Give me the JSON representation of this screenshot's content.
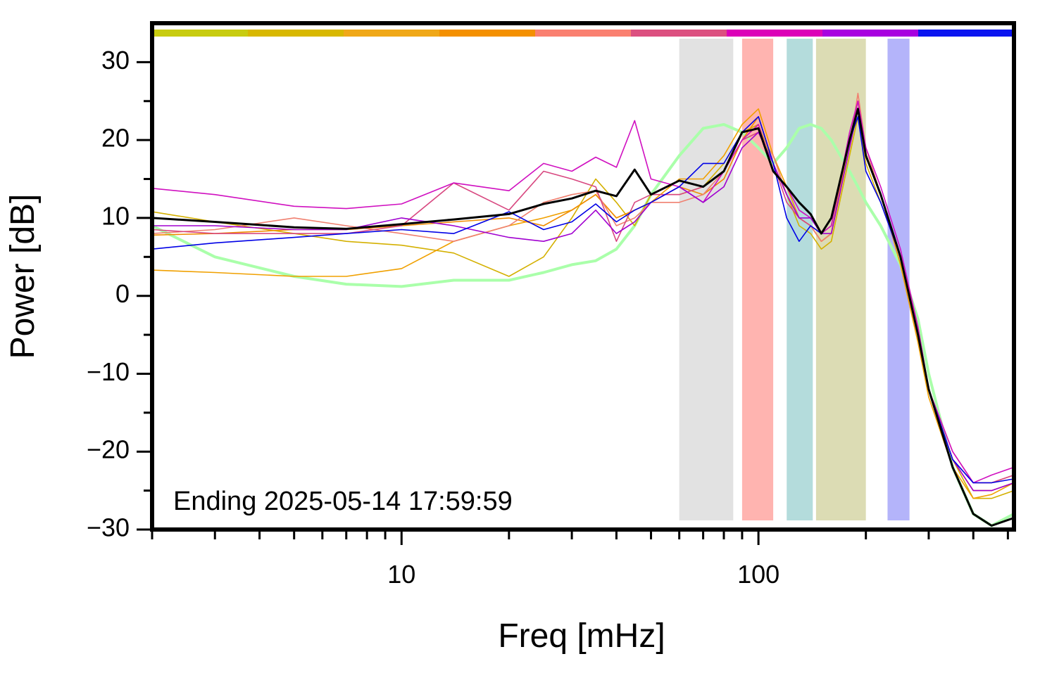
{
  "chart_data": {
    "type": "line",
    "xlabel": "Freq [mHz]",
    "ylabel": "Power [dB]",
    "annotation": "Ending 2025-05-14 17:59:59",
    "log_x": true,
    "xlim": [
      2,
      520
    ],
    "ylim": [
      -30,
      35
    ],
    "xticks": [
      10,
      100
    ],
    "xminor": [
      2,
      3,
      4,
      5,
      6,
      7,
      8,
      9,
      20,
      30,
      40,
      50,
      60,
      70,
      80,
      90,
      200,
      300,
      400,
      500
    ],
    "yticks": [
      {
        "value": -30,
        "label": "−30"
      },
      {
        "value": -20,
        "label": "−20"
      },
      {
        "value": -10,
        "label": "−10"
      },
      0,
      10,
      20,
      30
    ],
    "yminor": [
      -25,
      -15,
      -5,
      5,
      15,
      25
    ],
    "colorbar": [
      "#c8cc10",
      "#d8b800",
      "#f0a818",
      "#f49000",
      "#fa8070",
      "#dc5080",
      "#dc00b8",
      "#a800e0",
      "#0a14f0"
    ],
    "bands": [
      {
        "range": [
          60,
          85
        ],
        "color": "#e2e2e2"
      },
      {
        "range": [
          90,
          110
        ],
        "color": "#ffb4b0"
      },
      {
        "range": [
          120,
          142
        ],
        "color": "#b4dcdc"
      },
      {
        "range": [
          145,
          200
        ],
        "color": "#dcdcb4"
      },
      {
        "range": [
          230,
          265
        ],
        "color": "#b4b4fa"
      }
    ],
    "x": [
      2,
      3,
      5,
      7,
      10,
      14,
      20,
      25,
      30,
      35,
      40,
      45,
      50,
      60,
      70,
      80,
      90,
      100,
      110,
      120,
      130,
      140,
      150,
      160,
      180,
      190,
      200,
      220,
      250,
      280,
      300,
      350,
      400,
      450,
      520
    ],
    "series": [
      {
        "color": "#aaffaa",
        "width": 4,
        "values": [
          9,
          5,
          2.5,
          1.5,
          1.2,
          2,
          2,
          3,
          4,
          4.5,
          6,
          9,
          13,
          18,
          21.5,
          22,
          21,
          19,
          17,
          19,
          21.5,
          22,
          21.5,
          20,
          16,
          14,
          12,
          9,
          4,
          -3,
          -10,
          -22,
          -28,
          -29.5,
          -28
        ]
      },
      {
        "color": "#d4b000",
        "width": 1.6,
        "values": [
          10.8,
          9.5,
          8,
          7,
          6.5,
          5.5,
          2.5,
          5,
          10,
          15,
          12,
          9,
          13,
          13,
          14,
          17,
          21,
          22,
          17,
          13,
          9,
          8,
          6,
          7,
          18,
          23,
          17,
          12,
          5,
          -5,
          -12,
          -21,
          -26,
          -26,
          -25
        ]
      },
      {
        "color": "#f0a000",
        "width": 1.6,
        "values": [
          3.3,
          3,
          2.5,
          2.5,
          3.5,
          7,
          9,
          10,
          11,
          13,
          10,
          11,
          12,
          15,
          15,
          18,
          22,
          24,
          18,
          14,
          10,
          9,
          7,
          8,
          20,
          24,
          18,
          13,
          4,
          -6,
          -13,
          -22,
          -26,
          -25.5,
          -24
        ]
      },
      {
        "color": "#f08c00",
        "width": 1.6,
        "values": [
          7.8,
          8,
          8.5,
          8.5,
          9,
          9.5,
          10,
          9,
          11,
          13,
          10,
          11,
          12,
          14,
          13,
          15,
          20,
          23,
          17,
          13,
          10,
          9,
          7,
          8,
          19,
          24,
          18,
          13,
          5,
          -5,
          -12,
          -21,
          -25,
          -25,
          -24
        ]
      },
      {
        "color": "#f08070",
        "width": 1.6,
        "values": [
          8,
          8.5,
          10,
          9,
          8,
          7,
          9,
          12,
          13,
          13.5,
          9,
          10,
          12,
          12,
          13,
          16,
          20,
          21,
          18,
          13,
          10,
          9,
          7,
          8,
          19,
          26,
          19,
          13,
          5,
          -5,
          -12,
          -20,
          -24,
          -24,
          -23
        ]
      },
      {
        "color": "#d84880",
        "width": 1.6,
        "values": [
          8.5,
          8,
          8,
          8,
          9,
          14.5,
          11,
          16,
          15,
          14,
          7,
          12,
          13,
          13,
          14,
          16,
          20,
          21,
          17,
          12,
          10,
          9,
          8,
          9,
          20,
          25,
          18,
          13,
          5,
          -4,
          -12,
          -21,
          -24,
          -24,
          -23
        ]
      },
      {
        "color": "#d010c0",
        "width": 1.6,
        "values": [
          13.8,
          13,
          11.5,
          11.2,
          11.8,
          14.5,
          13.5,
          17,
          16,
          17.8,
          16.5,
          22.5,
          15,
          14,
          12,
          16,
          20,
          22,
          16,
          14,
          11,
          10,
          8,
          9,
          21,
          25,
          19,
          14,
          6,
          -4,
          -12,
          -20,
          -24,
          -23,
          -22
        ]
      },
      {
        "color": "#a000d0",
        "width": 1.6,
        "values": [
          9,
          9,
          8.5,
          8.5,
          10,
          9,
          7.5,
          7,
          8,
          11,
          8,
          9.5,
          12,
          14,
          12,
          14,
          19,
          21,
          17,
          13,
          10,
          10,
          8,
          8,
          19,
          24,
          18,
          13,
          5,
          -5,
          -12,
          -21,
          -25,
          -25,
          -24
        ]
      },
      {
        "color": "#0000e6",
        "width": 1.6,
        "values": [
          6,
          6.8,
          7.5,
          8,
          8.5,
          8,
          10.8,
          8.5,
          9.5,
          11.8,
          9.5,
          11,
          12,
          14,
          17,
          17,
          21,
          23,
          17,
          10,
          7,
          9,
          8,
          10,
          20,
          23,
          16,
          12,
          5,
          -5,
          -12,
          -21,
          -24,
          -24,
          -23.5
        ]
      },
      {
        "color": "#000000",
        "width": 3,
        "values": [
          10,
          9.5,
          8.8,
          8.6,
          9.2,
          9.8,
          10.5,
          11.8,
          12.5,
          13.5,
          12.8,
          16.2,
          13,
          14.8,
          14,
          16,
          21,
          21.5,
          16,
          14,
          12,
          10.5,
          8,
          10,
          20,
          24,
          18,
          13,
          5,
          -5,
          -12,
          -22,
          -28,
          -29.5,
          -28.5
        ]
      }
    ]
  }
}
